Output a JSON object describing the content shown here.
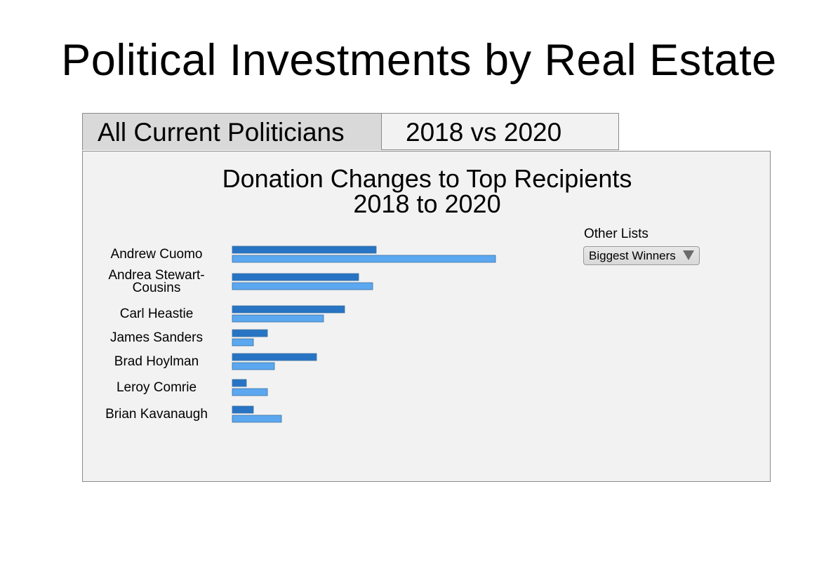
{
  "page": {
    "title": "Political Investments by Real Estate"
  },
  "tabs": [
    {
      "label": "All Current Politicians",
      "active": true
    },
    {
      "label": "2018 vs 2020",
      "active": false
    }
  ],
  "controls": {
    "other_lists_label": "Other Lists",
    "dropdown_value": "Biggest Winners",
    "dropdown_icon": "triangle-down-icon"
  },
  "chart_data": {
    "type": "bar",
    "orientation": "horizontal",
    "title_line1": "Donation Changes to Top Recipients",
    "title_line2": "2018 to 2020",
    "categories": [
      "Andrew Cuomo",
      "Andrea Stewart-Cousins",
      "Carl Heastie",
      "James Sanders",
      "Brad Hoylman",
      "Leroy Comrie",
      "Brian Kavanaugh"
    ],
    "category_lines": [
      [
        "Andrew Cuomo"
      ],
      [
        "Andrea Stewart-",
        "Cousins"
      ],
      [
        "Carl Heastie"
      ],
      [
        "James Sanders"
      ],
      [
        "Brad Hoylman"
      ],
      [
        "Leroy Comrie"
      ],
      [
        "Brian Kavanaugh"
      ]
    ],
    "series": [
      {
        "values": [
          20.5,
          18,
          16,
          5,
          12,
          2,
          3
        ],
        "color": "#2874c4"
      },
      {
        "values": [
          37.5,
          20,
          13,
          3,
          6,
          5,
          7
        ],
        "color": "#5ba8f0"
      }
    ],
    "xlim": [
      0,
      40
    ],
    "grid": false,
    "legend": "none",
    "axes_visible": false
  }
}
